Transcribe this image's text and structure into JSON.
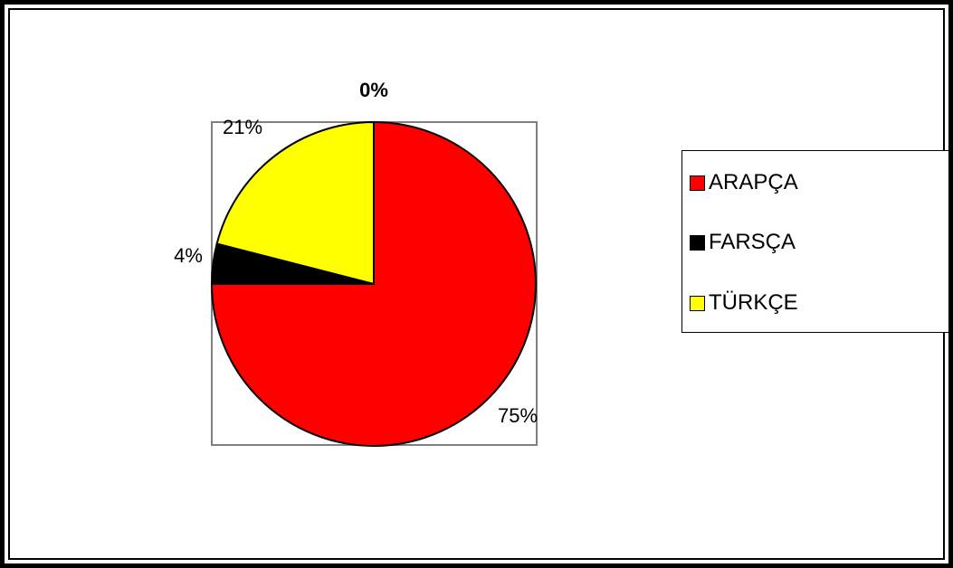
{
  "chart_data": {
    "type": "pie",
    "categories": [
      "ARAPÇA",
      "FARSÇA",
      "TÜRKÇE",
      ""
    ],
    "values": [
      75,
      4,
      21,
      0
    ],
    "data_labels": [
      "75%",
      "4%",
      "21%",
      "0%"
    ],
    "colors": [
      "#ff0000",
      "#000000",
      "#ffff00",
      "#ffffff"
    ],
    "legend": {
      "position": "right",
      "items": [
        {
          "label": "ARAPÇA",
          "color": "#ff0000"
        },
        {
          "label": "FARSÇA",
          "color": "#000000"
        },
        {
          "label": "TÜRKÇE",
          "color": "#ffff00"
        }
      ]
    }
  }
}
